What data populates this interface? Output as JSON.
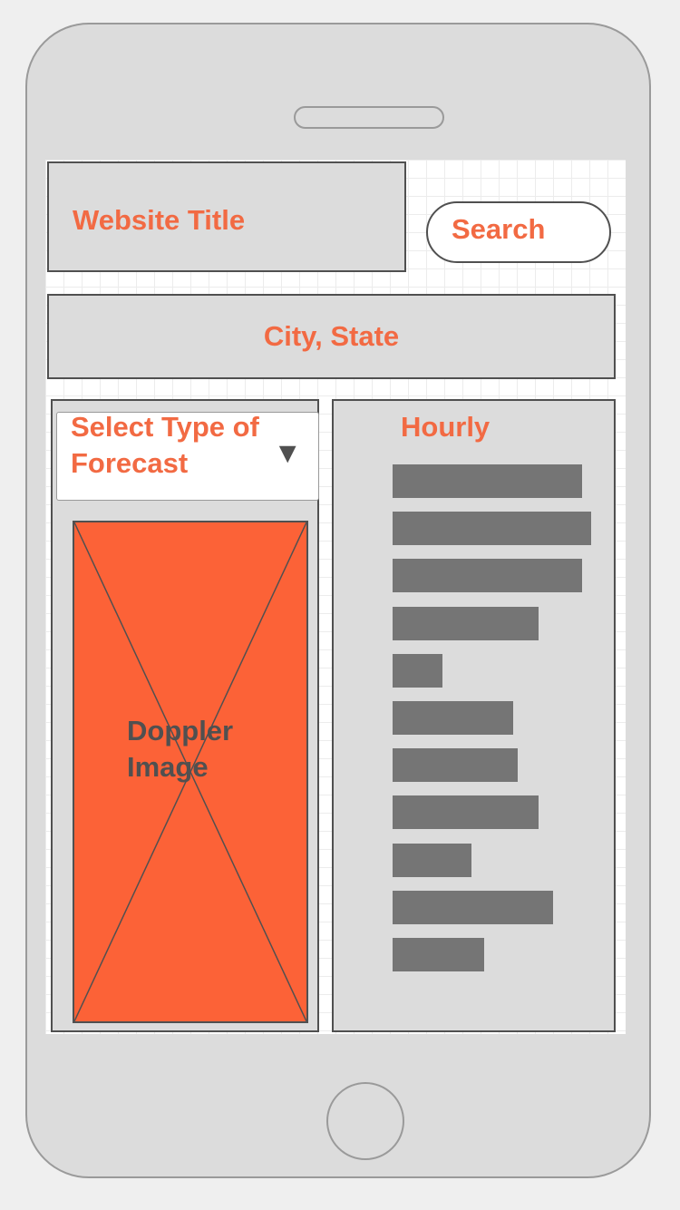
{
  "header": {
    "title": "Website Title",
    "search_label": "Search"
  },
  "location": {
    "label": "City, State"
  },
  "forecast": {
    "select_label": "Select Type of Forecast",
    "dropdown_icon": "triangle-down-icon",
    "doppler_caption": "Doppler Image"
  },
  "hourly": {
    "label": "Hourly",
    "bar_levels": [
      0.91,
      0.95,
      0.91,
      0.7,
      0.24,
      0.58,
      0.6,
      0.7,
      0.38,
      0.77,
      0.44
    ]
  },
  "colors": {
    "accent": "#f26a43",
    "image_placeholder": "#fc6237",
    "bar": "#757575",
    "panel": "#dcdcdc"
  }
}
